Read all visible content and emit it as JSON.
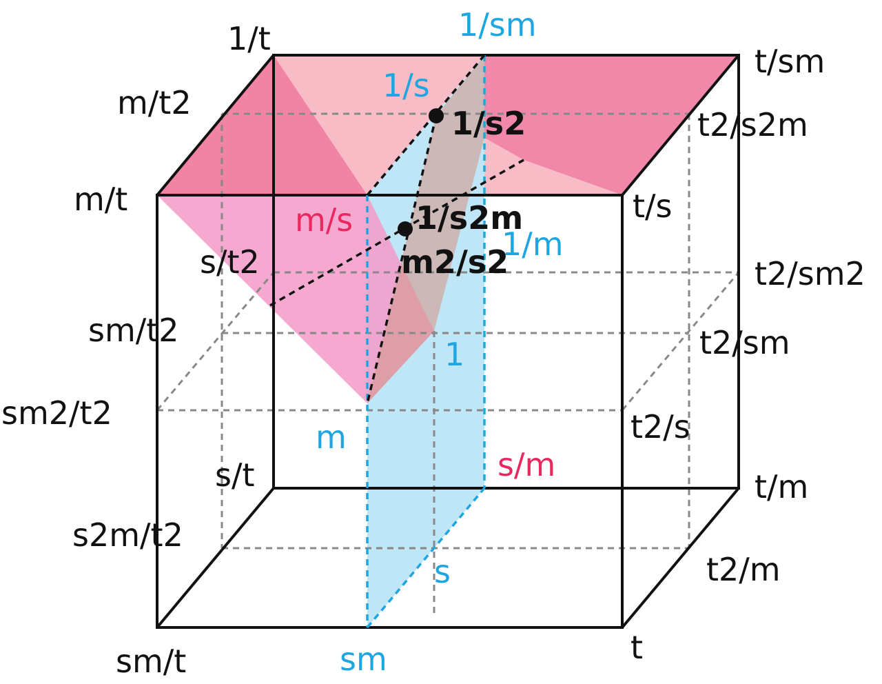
{
  "labels": [
    "1/t",
    "1/sm",
    "t/sm",
    "m/t2",
    "1/s",
    "1/s2",
    "t2/s2m",
    "m/t",
    "t/s",
    "m/s",
    "1/s2m",
    "1/m",
    "s/t2",
    "m2/s2",
    "t2/sm2",
    "sm/t2",
    "t2/sm",
    "1",
    "sm2/t2",
    "t2/s",
    "m",
    "s/m",
    "s/t",
    "t/m",
    "s2m/t2",
    "t2/m",
    "s",
    "sm/t",
    "sm",
    "t"
  ]
}
